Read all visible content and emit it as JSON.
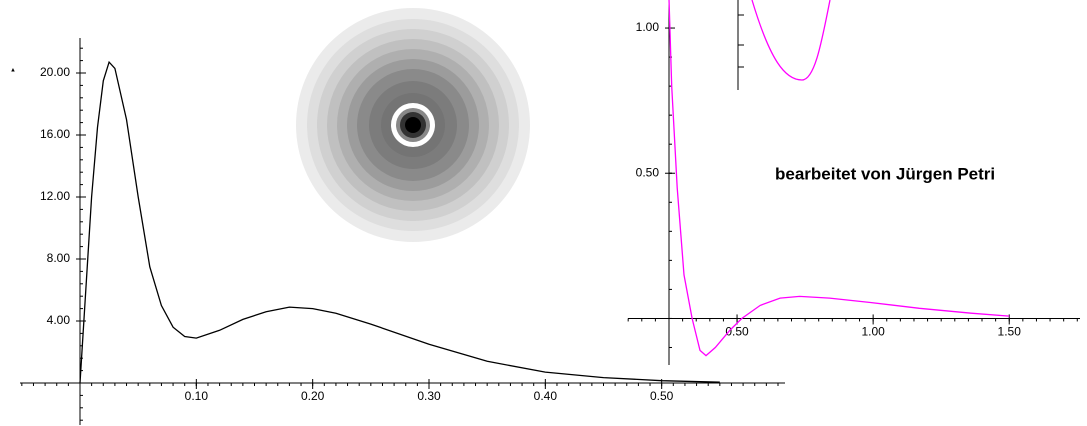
{
  "chart_data": [
    {
      "type": "line",
      "x": [
        0,
        0.005,
        0.01,
        0.015,
        0.02,
        0.025,
        0.03,
        0.04,
        0.05,
        0.06,
        0.07,
        0.08,
        0.09,
        0.1,
        0.12,
        0.14,
        0.16,
        0.18,
        0.2,
        0.22,
        0.25,
        0.3,
        0.35,
        0.4,
        0.45,
        0.5,
        0.55
      ],
      "series": [
        {
          "color": "#000000",
          "values": [
            0,
            6,
            12,
            16.5,
            19.5,
            20.7,
            20.3,
            17,
            12,
            7.5,
            5,
            3.6,
            3.0,
            2.9,
            3.4,
            4.1,
            4.6,
            4.9,
            4.8,
            4.5,
            3.8,
            2.5,
            1.4,
            0.7,
            0.35,
            0.15,
            0.05
          ]
        }
      ],
      "xlim": [
        0,
        0.6
      ],
      "xticks": [
        {
          "value": 0.1,
          "label": "0.10"
        },
        {
          "value": 0.2,
          "label": "0.20"
        },
        {
          "value": 0.3,
          "label": "0.30"
        },
        {
          "value": 0.4,
          "label": "0.40"
        },
        {
          "value": 0.5,
          "label": "0.50"
        }
      ],
      "ylim": [
        0,
        22
      ],
      "yticks": [
        {
          "value": 4,
          "label": "4.00"
        },
        {
          "value": 8,
          "label": "8.00"
        },
        {
          "value": 12,
          "label": "12.00"
        },
        {
          "value": 16,
          "label": "16.00"
        },
        {
          "value": 20,
          "label": "20.00"
        }
      ]
    },
    {
      "type": "line",
      "x": [
        0.25,
        0.26,
        0.28,
        0.305,
        0.335,
        0.364,
        0.386,
        0.42,
        0.474,
        0.518,
        0.585,
        0.658,
        0.73,
        0.84,
        0.99,
        1.17,
        1.36,
        1.5
      ],
      "series": [
        {
          "color": "#ff00ff",
          "values": [
            1.1,
            0.8,
            0.45,
            0.15,
            0,
            -0.11,
            -0.128,
            -0.1,
            -0.04,
            0,
            0.045,
            0.07,
            0.076,
            0.07,
            0.055,
            0.035,
            0.018,
            0.008
          ]
        }
      ],
      "xlim": [
        0.25,
        1.76
      ],
      "xticks": [
        {
          "value": 0.5,
          "label": "0.50"
        },
        {
          "value": 1.0,
          "label": "1.00"
        },
        {
          "value": 1.5,
          "label": "1.50"
        }
      ],
      "ylim": [
        -0.15,
        1.1
      ],
      "yticks": [
        {
          "value": 0.5,
          "label": "0.50"
        },
        {
          "value": 1.0,
          "label": "1.00"
        }
      ]
    }
  ],
  "annotation": "bearbeitet von Jürgen Petri"
}
